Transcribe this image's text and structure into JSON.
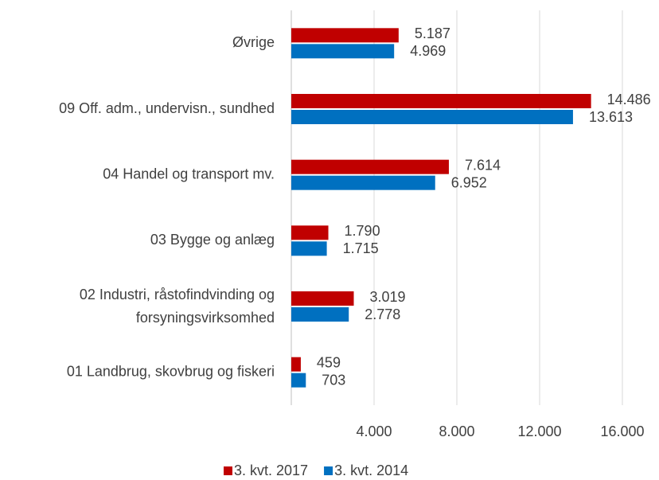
{
  "chart_data": {
    "type": "hbar",
    "categories": [
      "Øvrige",
      "09 Off. adm., undervisn., sundhed",
      "04 Handel og transport mv.",
      "03 Bygge og anlæg",
      "02 Industri, råstofindvinding og forsyningsvirksomhed",
      "01 Landbrug, skovbrug og fiskeri"
    ],
    "series": [
      {
        "name": "3. kvt. 2017",
        "color": "#c00000",
        "values": [
          5187,
          14486,
          7614,
          1790,
          3019,
          459
        ],
        "value_labels": [
          "5.187",
          "14.486",
          "7.614",
          "1.790",
          "3.019",
          "459"
        ]
      },
      {
        "name": "3. kvt. 2014",
        "color": "#0070c0",
        "values": [
          4969,
          13613,
          6952,
          1715,
          2778,
          703
        ],
        "value_labels": [
          "4.969",
          "13.613",
          "6.952",
          "1.715",
          "2.778",
          "703"
        ]
      }
    ],
    "xlim": [
      0,
      16000
    ],
    "xticks": [
      {
        "value": 4000,
        "label": "4.000"
      },
      {
        "value": 8000,
        "label": "8.000"
      },
      {
        "value": 12000,
        "label": "12.000"
      },
      {
        "value": 16000,
        "label": "16.000"
      }
    ],
    "grid": true,
    "legend": "bottom"
  }
}
